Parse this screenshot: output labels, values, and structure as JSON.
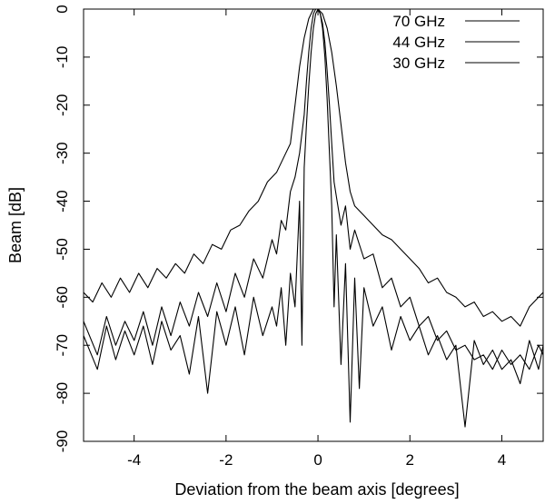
{
  "chart_data": {
    "type": "line",
    "title": "",
    "xlabel": "Deviation from the beam axis [degrees]",
    "ylabel": "Beam [dB]",
    "xlim": [
      -5.1,
      4.9
    ],
    "ylim": [
      -90,
      0
    ],
    "grid": false,
    "legend_position": "top-right",
    "x_ticks": [
      -4,
      -2,
      0,
      2,
      4
    ],
    "x_tick_labels": [
      "-4",
      "-2",
      "0",
      "2",
      "4"
    ],
    "y_ticks": [
      0,
      -10,
      -20,
      -30,
      -40,
      -50,
      -60,
      -70,
      -80,
      -90
    ],
    "y_tick_labels": [
      "0",
      "-10",
      "-20",
      "-30",
      "-40",
      "-50",
      "-60",
      "-70",
      "-80",
      "-90"
    ],
    "series": [
      {
        "name": "70 GHz",
        "x": [
          -5.1,
          -4.8,
          -4.6,
          -4.4,
          -4.2,
          -4.0,
          -3.8,
          -3.6,
          -3.4,
          -3.2,
          -3.0,
          -2.8,
          -2.6,
          -2.4,
          -2.2,
          -2.0,
          -1.8,
          -1.6,
          -1.4,
          -1.2,
          -1.0,
          -0.9,
          -0.8,
          -0.7,
          -0.6,
          -0.5,
          -0.4,
          -0.35,
          -0.3,
          -0.25,
          -0.2,
          -0.15,
          -0.1,
          -0.05,
          0.0,
          0.05,
          0.1,
          0.15,
          0.2,
          0.25,
          0.3,
          0.35,
          0.4,
          0.5,
          0.6,
          0.7,
          0.8,
          0.9,
          1.0,
          1.2,
          1.4,
          1.6,
          1.8,
          2.0,
          2.2,
          2.4,
          2.6,
          2.8,
          3.0,
          3.2,
          3.4,
          3.6,
          3.8,
          4.0,
          4.2,
          4.4,
          4.6,
          4.8,
          4.9
        ],
        "y": [
          -68,
          -75,
          -66,
          -73,
          -67,
          -72,
          -66,
          -74,
          -65,
          -71,
          -68,
          -76,
          -64,
          -80,
          -63,
          -70,
          -62,
          -72,
          -60,
          -68,
          -62,
          -66,
          -58,
          -70,
          -55,
          -62,
          -40,
          -70,
          -33,
          -24,
          -16,
          -9,
          -4,
          -1,
          0,
          -1,
          -4,
          -10,
          -19,
          -30,
          -41,
          -62,
          -47,
          -74,
          -53,
          -86,
          -56,
          -79,
          -58,
          -66,
          -62,
          -71,
          -64,
          -69,
          -66,
          -72,
          -68,
          -73,
          -70,
          -87,
          -69,
          -74,
          -71,
          -75,
          -73,
          -78,
          -69,
          -75,
          -70
        ]
      },
      {
        "name": "44 GHz",
        "x": [
          -5.1,
          -4.8,
          -4.6,
          -4.4,
          -4.2,
          -4.0,
          -3.8,
          -3.6,
          -3.4,
          -3.2,
          -3.0,
          -2.8,
          -2.6,
          -2.4,
          -2.2,
          -2.0,
          -1.8,
          -1.6,
          -1.4,
          -1.2,
          -1.0,
          -0.9,
          -0.8,
          -0.7,
          -0.6,
          -0.5,
          -0.4,
          -0.3,
          -0.25,
          -0.2,
          -0.15,
          -0.1,
          -0.05,
          0.0,
          0.05,
          0.1,
          0.15,
          0.2,
          0.25,
          0.3,
          0.35,
          0.4,
          0.5,
          0.6,
          0.7,
          0.8,
          1.0,
          1.2,
          1.4,
          1.6,
          1.8,
          2.0,
          2.2,
          2.4,
          2.6,
          2.8,
          3.0,
          3.2,
          3.4,
          3.6,
          3.8,
          4.0,
          4.2,
          4.4,
          4.6,
          4.8,
          4.9
        ],
        "y": [
          -65,
          -72,
          -64,
          -70,
          -65,
          -69,
          -63,
          -70,
          -62,
          -68,
          -61,
          -66,
          -59,
          -64,
          -57,
          -63,
          -55,
          -60,
          -52,
          -56,
          -48,
          -51,
          -44,
          -46,
          -38,
          -35,
          -30,
          -22,
          -15,
          -9,
          -4,
          -1,
          0,
          0,
          -1,
          -3,
          -7,
          -13,
          -20,
          -28,
          -36,
          -39,
          -45,
          -41,
          -50,
          -46,
          -52,
          -51,
          -58,
          -56,
          -62,
          -60,
          -66,
          -64,
          -69,
          -67,
          -71,
          -70,
          -73,
          -72,
          -75,
          -71,
          -74,
          -72,
          -75,
          -70,
          -72
        ]
      },
      {
        "name": "30 GHz",
        "x": [
          -5.1,
          -4.9,
          -4.7,
          -4.5,
          -4.3,
          -4.1,
          -3.9,
          -3.7,
          -3.5,
          -3.3,
          -3.1,
          -2.9,
          -2.7,
          -2.5,
          -2.3,
          -2.1,
          -1.9,
          -1.7,
          -1.5,
          -1.3,
          -1.1,
          -0.9,
          -0.7,
          -0.6,
          -0.5,
          -0.4,
          -0.3,
          -0.2,
          -0.1,
          0.0,
          0.1,
          0.2,
          0.3,
          0.4,
          0.5,
          0.6,
          0.7,
          0.8,
          1.0,
          1.2,
          1.4,
          1.6,
          1.8,
          2.0,
          2.2,
          2.4,
          2.6,
          2.8,
          3.0,
          3.2,
          3.4,
          3.6,
          3.8,
          4.0,
          4.2,
          4.4,
          4.6,
          4.8,
          4.9
        ],
        "y": [
          -59,
          -61,
          -57,
          -60,
          -56,
          -59,
          -55,
          -58,
          -54,
          -56,
          -53,
          -55,
          -51,
          -53,
          -49,
          -50,
          -46,
          -45,
          -42,
          -40,
          -36,
          -34,
          -30,
          -28,
          -20,
          -12,
          -6,
          -2,
          0,
          0,
          -1,
          -4,
          -9,
          -16,
          -24,
          -32,
          -38,
          -41,
          -43,
          -45,
          -47,
          -48,
          -50,
          -52,
          -54,
          -57,
          -56,
          -59,
          -60,
          -62,
          -61,
          -64,
          -63,
          -65,
          -64,
          -66,
          -62,
          -60,
          -59
        ]
      }
    ]
  }
}
